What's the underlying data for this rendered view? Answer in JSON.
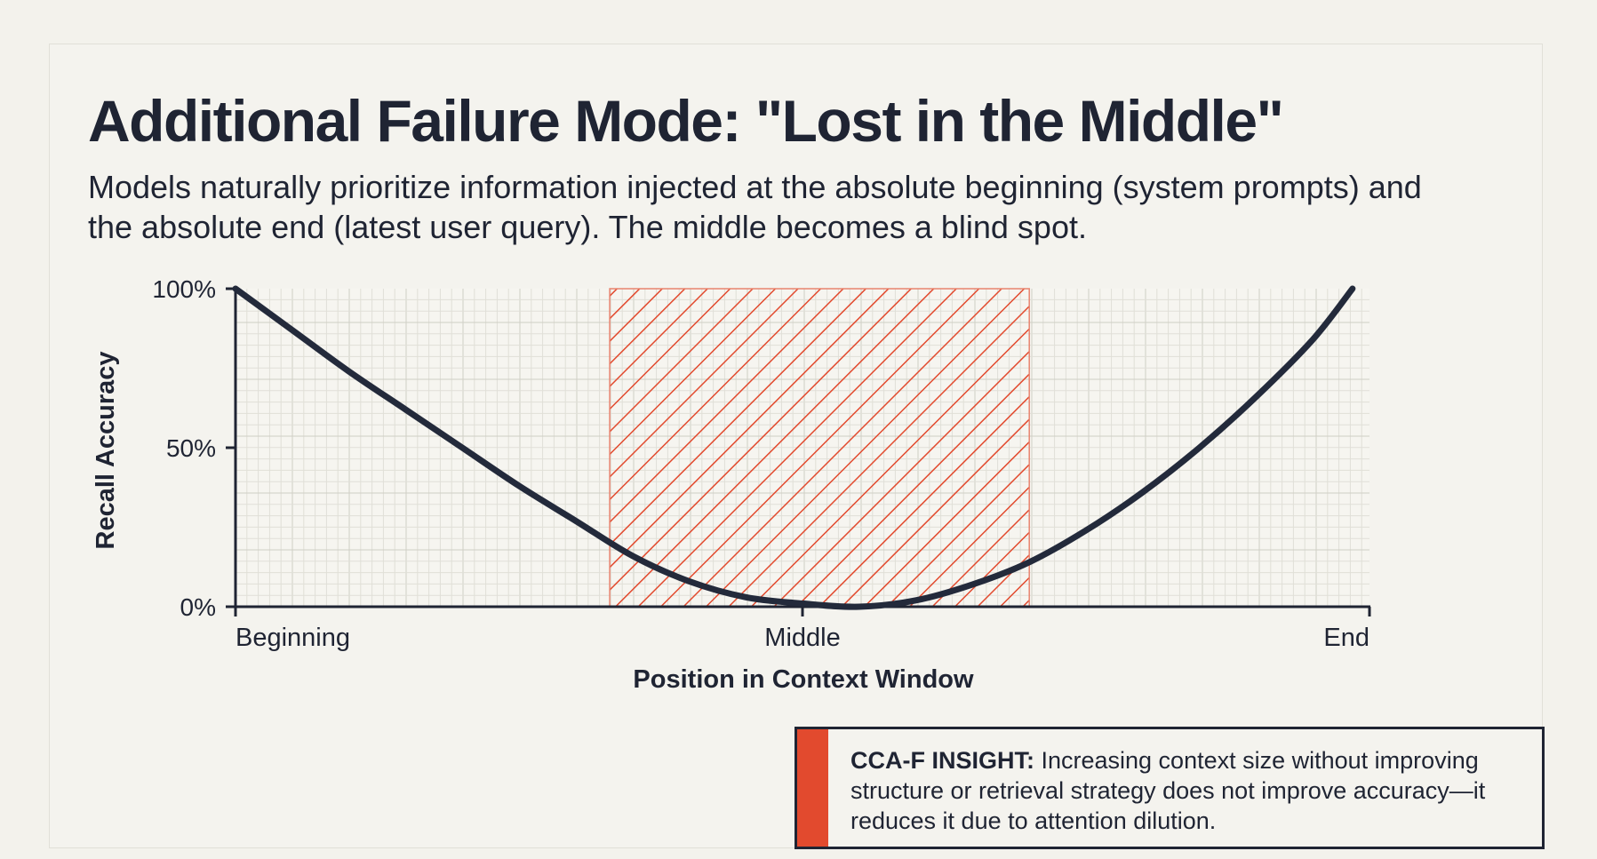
{
  "header": {
    "title": "Additional Failure Mode: \"Lost in the Middle\"",
    "subtitle": "Models naturally prioritize information injected at the absolute beginning (system prompts) and the absolute end (latest user query). The middle becomes a blind spot."
  },
  "chart_data": {
    "type": "line",
    "xlabel": "Position in Context Window",
    "ylabel": "Recall Accuracy",
    "x_tick_labels": [
      "Beginning",
      "Middle",
      "End"
    ],
    "y_ticks": [
      0,
      50,
      100
    ],
    "y_tick_labels": [
      "0%",
      "50%",
      "100%"
    ],
    "xlim": [
      0,
      1
    ],
    "ylim": [
      0,
      100
    ],
    "grid": true,
    "highlight_region": {
      "x_start": 0.33,
      "x_end": 0.7,
      "color": "#e24a2e",
      "pattern": "diagonal-hatch"
    },
    "series": [
      {
        "color": "#232a3b",
        "x": [
          0.0,
          0.05,
          0.1,
          0.15,
          0.2,
          0.25,
          0.3,
          0.35,
          0.4,
          0.45,
          0.5,
          0.55,
          0.6,
          0.65,
          0.7,
          0.75,
          0.8,
          0.85,
          0.9,
          0.95,
          0.985
        ],
        "y": [
          100,
          87,
          74,
          62,
          50,
          38,
          27,
          16,
          8,
          3,
          1,
          0,
          2,
          7,
          14,
          24,
          36,
          50,
          66,
          84,
          100
        ]
      }
    ]
  },
  "insight": {
    "label": "CCA-F INSIGHT:",
    "text": " Increasing context size without improving structure or retrieval strategy does not improve accuracy—it reduces it due to attention dilution."
  },
  "colors": {
    "accent": "#e24a2e",
    "ink": "#1f2433",
    "grid": "#d4d3cb"
  }
}
